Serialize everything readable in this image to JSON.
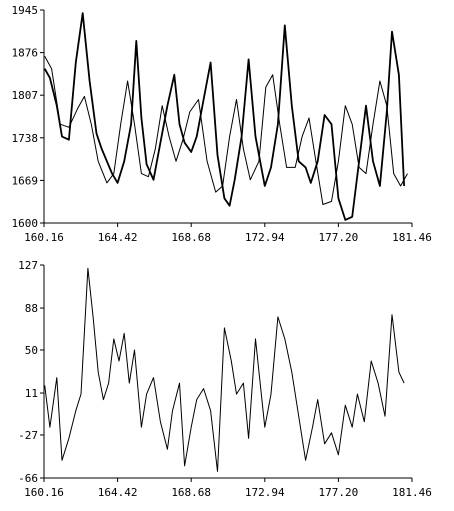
{
  "chart_data": [
    {
      "type": "line",
      "title": "",
      "xlabel": "",
      "ylabel": "",
      "xlim": [
        160.16,
        181.46
      ],
      "ylim": [
        1600,
        1945
      ],
      "x_ticks": [
        "160.16",
        "164.42",
        "168.68",
        "172.94",
        "177.20",
        "181.46"
      ],
      "y_ticks": [
        "1600",
        "1669",
        "1738",
        "1807",
        "1876",
        "1945"
      ],
      "grid": false,
      "legend": "none",
      "series": [
        {
          "style": "thick-noisy",
          "x": [
            160.2,
            160.5,
            160.9,
            161.2,
            161.6,
            162.0,
            162.4,
            162.8,
            163.2,
            163.5,
            163.8,
            164.1,
            164.42,
            164.8,
            165.2,
            165.5,
            165.8,
            166.1,
            166.5,
            166.9,
            167.3,
            167.7,
            168.0,
            168.3,
            168.68,
            169.0,
            169.4,
            169.8,
            170.2,
            170.6,
            170.9,
            171.2,
            171.6,
            172.0,
            172.4,
            172.94,
            173.3,
            173.7,
            174.1,
            174.5,
            174.9,
            175.3,
            175.6,
            176.0,
            176.4,
            176.8,
            177.2,
            177.6,
            178.0,
            178.4,
            178.8,
            179.2,
            179.6,
            180.0,
            180.3,
            180.7,
            181.0
          ],
          "y": [
            1850,
            1835,
            1790,
            1740,
            1735,
            1860,
            1940,
            1830,
            1745,
            1720,
            1700,
            1680,
            1665,
            1700,
            1760,
            1895,
            1770,
            1695,
            1670,
            1730,
            1790,
            1840,
            1760,
            1730,
            1715,
            1740,
            1800,
            1860,
            1710,
            1640,
            1628,
            1670,
            1740,
            1865,
            1740,
            1660,
            1690,
            1760,
            1920,
            1790,
            1700,
            1690,
            1665,
            1700,
            1775,
            1760,
            1640,
            1605,
            1610,
            1700,
            1790,
            1700,
            1660,
            1780,
            1910,
            1840,
            1660
          ]
        },
        {
          "style": "thin-smooth",
          "x": [
            160.2,
            160.6,
            161.1,
            161.6,
            162.1,
            162.5,
            162.9,
            163.3,
            163.8,
            164.2,
            164.6,
            165.0,
            165.4,
            165.8,
            166.2,
            166.6,
            167.0,
            167.4,
            167.8,
            168.2,
            168.6,
            169.1,
            169.6,
            170.1,
            170.5,
            170.9,
            171.3,
            171.7,
            172.1,
            172.6,
            173.0,
            173.4,
            173.8,
            174.2,
            174.7,
            175.1,
            175.5,
            175.9,
            176.3,
            176.8,
            177.2,
            177.6,
            178.0,
            178.4,
            178.8,
            179.2,
            179.6,
            180.0,
            180.4,
            180.8,
            181.2
          ],
          "y": [
            1870,
            1850,
            1760,
            1755,
            1785,
            1805,
            1760,
            1700,
            1665,
            1680,
            1760,
            1830,
            1760,
            1680,
            1675,
            1720,
            1790,
            1740,
            1700,
            1735,
            1780,
            1800,
            1700,
            1650,
            1660,
            1740,
            1800,
            1720,
            1670,
            1700,
            1820,
            1840,
            1760,
            1690,
            1690,
            1740,
            1770,
            1700,
            1630,
            1635,
            1700,
            1790,
            1760,
            1690,
            1680,
            1760,
            1830,
            1790,
            1680,
            1660,
            1680
          ]
        }
      ]
    },
    {
      "type": "line",
      "title": "",
      "xlabel": "",
      "ylabel": "",
      "xlim": [
        160.16,
        181.46
      ],
      "ylim": [
        -66,
        127
      ],
      "x_ticks": [
        "160.16",
        "164.42",
        "168.68",
        "172.94",
        "177.20",
        "181.46"
      ],
      "y_ticks": [
        "-66",
        "-27",
        "11",
        "50",
        "88",
        "127"
      ],
      "grid": false,
      "legend": "none",
      "series": [
        {
          "style": "thin-noisy",
          "x": [
            160.2,
            160.5,
            160.9,
            161.2,
            161.6,
            162.0,
            162.3,
            162.7,
            163.0,
            163.3,
            163.6,
            163.9,
            164.2,
            164.5,
            164.8,
            165.1,
            165.4,
            165.8,
            166.1,
            166.5,
            166.9,
            167.3,
            167.6,
            168.0,
            168.3,
            168.68,
            169.0,
            169.4,
            169.8,
            170.2,
            170.6,
            171.0,
            171.3,
            171.7,
            172.0,
            172.4,
            172.94,
            173.3,
            173.7,
            174.1,
            174.5,
            174.9,
            175.3,
            175.7,
            176.0,
            176.4,
            176.8,
            177.2,
            177.6,
            178.0,
            178.3,
            178.7,
            179.1,
            179.5,
            179.9,
            180.3,
            180.7,
            181.0
          ],
          "y": [
            18,
            -20,
            25,
            -50,
            -30,
            -5,
            10,
            124,
            80,
            30,
            5,
            20,
            60,
            40,
            65,
            20,
            50,
            -20,
            10,
            25,
            -15,
            -40,
            -5,
            20,
            -55,
            -20,
            5,
            15,
            -5,
            -60,
            70,
            40,
            10,
            20,
            -30,
            60,
            -20,
            10,
            80,
            60,
            30,
            -10,
            -50,
            -20,
            5,
            -35,
            -25,
            -45,
            0,
            -20,
            10,
            -15,
            40,
            20,
            -10,
            82,
            30,
            20
          ]
        }
      ]
    }
  ]
}
